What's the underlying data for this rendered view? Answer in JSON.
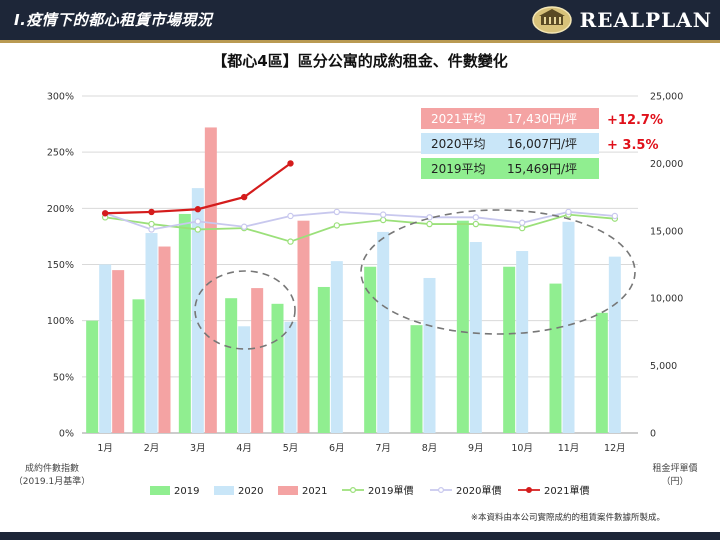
{
  "header": {
    "title": "Ⅰ.疫情下的都心租賃市場現況",
    "logo_text": "REALPLAN"
  },
  "note": "※本資料由本公司實際成約的租賃案件數據所製成。",
  "chart_data": {
    "type": "bar",
    "title": "【都心4區】區分公寓的成約租金、件數變化",
    "categories": [
      "1月",
      "2月",
      "3月",
      "4月",
      "5月",
      "6月",
      "7月",
      "8月",
      "9月",
      "10月",
      "11月",
      "12月"
    ],
    "y_left": {
      "label_line1": "成約件數指數",
      "label_line2": "（2019.1月基準）",
      "range": [
        0,
        300
      ],
      "ticks": [
        "0%",
        "50%",
        "100%",
        "150%",
        "200%",
        "250%",
        "300%"
      ]
    },
    "y_right": {
      "label_line1": "租金坪單價",
      "label_line2": "（円）",
      "range": [
        0,
        25000
      ],
      "ticks": [
        "0",
        "5,000",
        "10,000",
        "15,000",
        "20,000",
        "25,000"
      ]
    },
    "bar_series": [
      {
        "name": "2019",
        "color": "#90ee90",
        "values": [
          100,
          119,
          195,
          120,
          115,
          130,
          148,
          96,
          189,
          148,
          133,
          107
        ]
      },
      {
        "name": "2020",
        "color": "#c9e6f8",
        "values": [
          150,
          178,
          218,
          95,
          99,
          153,
          179,
          138,
          170,
          162,
          188,
          157
        ]
      },
      {
        "name": "2021",
        "color": "#f4a3a3",
        "values": [
          145,
          166,
          272,
          129,
          189
        ]
      }
    ],
    "line_series": [
      {
        "name": "2019單價",
        "color": "#9be07a",
        "values": [
          16000,
          15500,
          15100,
          15200,
          14200,
          15400,
          15800,
          15500,
          15500,
          15200,
          16200,
          15900
        ]
      },
      {
        "name": "2020單價",
        "color": "#c8c8ee",
        "values": [
          16300,
          15100,
          15700,
          15300,
          16100,
          16400,
          16200,
          16000,
          16000,
          15600,
          16400,
          16100
        ]
      },
      {
        "name": "2021單價",
        "color": "#d41c1c",
        "values": [
          16300,
          16400,
          16600,
          17500,
          20000
        ]
      }
    ],
    "averages": [
      {
        "label": "2021平均",
        "value": "17,430円/坪",
        "change": "+12.7%",
        "color": "#f4a3a3"
      },
      {
        "label": "2020平均",
        "value": "16,007円/坪",
        "change": "+  3.5%",
        "color": "#c9e6f8"
      },
      {
        "label": "2019平均",
        "value": "15,469円/坪",
        "change": "",
        "color": "#90ee90"
      }
    ]
  }
}
